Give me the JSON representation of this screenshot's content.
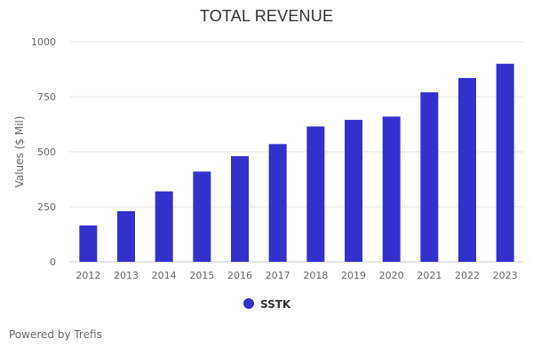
{
  "colors": {
    "series": "#3330CC",
    "grid": "#e6e6e6",
    "axis_text": "#666666",
    "legend_text": "#333333"
  },
  "footer": {
    "text": "Powered by Trefis"
  },
  "chart_data": {
    "type": "bar",
    "title": "TOTAL REVENUE",
    "xlabel": "",
    "ylabel": "Values ($ Mil)",
    "ylim": [
      0,
      1000
    ],
    "yticks": [
      "0",
      "250",
      "500",
      "750",
      "1000"
    ],
    "grid": true,
    "legend_position": "bottom",
    "categories": [
      "2012",
      "2013",
      "2014",
      "2015",
      "2016",
      "2017",
      "2018",
      "2019",
      "2020",
      "2021",
      "2022",
      "2023"
    ],
    "series": [
      {
        "name": "SSTK",
        "color": "#3330CC",
        "values": [
          165,
          230,
          320,
          410,
          480,
          535,
          615,
          645,
          660,
          770,
          835,
          900
        ]
      }
    ]
  }
}
